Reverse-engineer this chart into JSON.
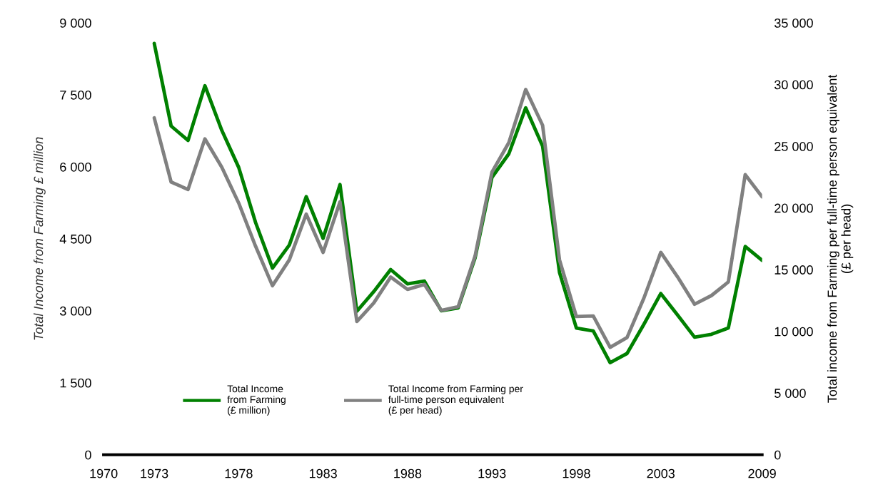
{
  "chart_data": {
    "type": "line",
    "ylabel": "Total Income from Farming £ million",
    "y2label": "Total income from Farming per full-time person equivalent\n(£ per head)",
    "x": [
      1973,
      1974,
      1975,
      1976,
      1977,
      1978,
      1979,
      1980,
      1981,
      1982,
      1983,
      1984,
      1985,
      1986,
      1987,
      1988,
      1989,
      1990,
      1991,
      1992,
      1993,
      1994,
      1995,
      1996,
      1997,
      1998,
      1999,
      2000,
      2001,
      2002,
      2003,
      2004,
      2005,
      2006,
      2007,
      2008,
      2009
    ],
    "series": [
      {
        "name": "Total Income\nfrom Farming\n(£ million)",
        "color": "#008000",
        "values": [
          8570,
          6850,
          6550,
          7690,
          6760,
          5990,
          4840,
          3890,
          4370,
          5380,
          4510,
          5630,
          2990,
          3400,
          3860,
          3560,
          3620,
          3000,
          3060,
          4100,
          5780,
          6270,
          7230,
          6430,
          3800,
          2640,
          2580,
          1920,
          2110,
          2720,
          3360,
          2910,
          2450,
          2510,
          2640,
          4340,
          4050
        ]
      },
      {
        "name": "Total Income from Farming per\nfull-time person equivalent\n(£ per head)",
        "color": "#808080",
        "axis": "y2",
        "values": [
          27300,
          22100,
          21500,
          25600,
          23300,
          20400,
          16900,
          13700,
          15800,
          19500,
          16400,
          20500,
          10800,
          12300,
          14400,
          13400,
          13800,
          11700,
          12000,
          16100,
          22900,
          25300,
          29600,
          26700,
          15800,
          11200,
          11250,
          8700,
          9500,
          12700,
          16400,
          14400,
          12200,
          12900,
          14000,
          22700,
          20900
        ]
      }
    ],
    "xlim": [
      1970,
      2009
    ],
    "xticks": [
      1970,
      1973,
      1978,
      1983,
      1988,
      1993,
      1998,
      2003,
      2009
    ],
    "ylim": [
      0,
      9000
    ],
    "yticks": [
      0,
      {
        "value": 1500,
        "label": "1 500"
      },
      {
        "value": 3000,
        "label": "3 000"
      },
      {
        "value": 4500,
        "label": "4 500"
      },
      {
        "value": 6000,
        "label": "6 000"
      },
      {
        "value": 7500,
        "label": "7 500"
      },
      {
        "value": 9000,
        "label": "9 000"
      }
    ],
    "y2lim": [
      0,
      35000
    ],
    "y2ticks": [
      0,
      {
        "value": 5000,
        "label": "5 000"
      },
      {
        "value": 10000,
        "label": "10 000"
      },
      {
        "value": 15000,
        "label": "15 000"
      },
      {
        "value": 20000,
        "label": "20 000"
      },
      {
        "value": 25000,
        "label": "25 000"
      },
      {
        "value": 30000,
        "label": "30 000"
      },
      {
        "value": 35000,
        "label": "35 000"
      }
    ],
    "legend": "bottom",
    "grid": false,
    "marker": "none",
    "line_style": "solid"
  }
}
